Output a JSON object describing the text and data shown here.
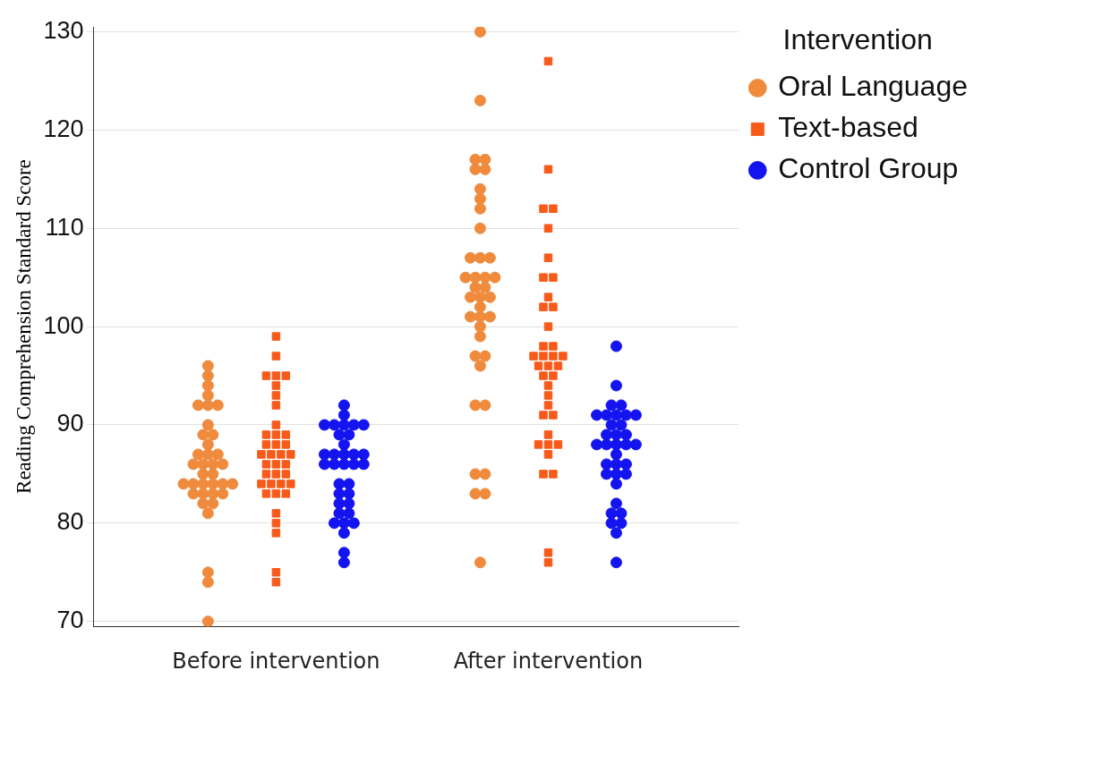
{
  "chart_data": {
    "type": "scatter",
    "ylabel": "Reading Comprehension Standard Score",
    "legend_title": "Intervention",
    "legend": "right",
    "grid": "y",
    "categories": [
      "Before intervention",
      "After intervention"
    ],
    "ylim": [
      69.5,
      130.5
    ],
    "yticks": [
      70,
      80,
      90,
      100,
      110,
      120,
      130
    ],
    "series": [
      {
        "name": "Oral Language",
        "color": "#f08a3c",
        "marker": "circle",
        "x": [
          "Before intervention",
          "Before intervention",
          "Before intervention",
          "Before intervention",
          "Before intervention",
          "Before intervention",
          "Before intervention",
          "Before intervention",
          "Before intervention",
          "Before intervention",
          "Before intervention",
          "Before intervention",
          "Before intervention",
          "Before intervention",
          "Before intervention",
          "Before intervention",
          "Before intervention",
          "Before intervention",
          "Before intervention",
          "Before intervention",
          "Before intervention",
          "Before intervention",
          "Before intervention",
          "Before intervention",
          "Before intervention",
          "Before intervention",
          "Before intervention",
          "Before intervention",
          "Before intervention",
          "Before intervention",
          "Before intervention",
          "Before intervention",
          "Before intervention",
          "Before intervention",
          "Before intervention",
          "Before intervention",
          "After intervention",
          "After intervention",
          "After intervention",
          "After intervention",
          "After intervention",
          "After intervention",
          "After intervention",
          "After intervention",
          "After intervention",
          "After intervention",
          "After intervention",
          "After intervention",
          "After intervention",
          "After intervention",
          "After intervention",
          "After intervention",
          "After intervention",
          "After intervention",
          "After intervention",
          "After intervention",
          "After intervention",
          "After intervention",
          "After intervention",
          "After intervention",
          "After intervention",
          "After intervention",
          "After intervention",
          "After intervention",
          "After intervention",
          "After intervention",
          "After intervention",
          "After intervention",
          "After intervention",
          "After intervention",
          "After intervention",
          "After intervention",
          "After intervention",
          "After intervention"
        ],
        "values": [
          96,
          95,
          94,
          93,
          92,
          92,
          92,
          90,
          89,
          89,
          88,
          87,
          87,
          87,
          86,
          86,
          86,
          86,
          85,
          85,
          84,
          84,
          84,
          84,
          84,
          84,
          83,
          83,
          83,
          83,
          82,
          82,
          81,
          75,
          74,
          70,
          130,
          123,
          117,
          117,
          116,
          116,
          114,
          113,
          112,
          110,
          107,
          107,
          107,
          105,
          105,
          105,
          105,
          104,
          104,
          103,
          103,
          103,
          102,
          101,
          101,
          101,
          100,
          99,
          97,
          97,
          96,
          92,
          92,
          85,
          85,
          83,
          83,
          76
        ]
      },
      {
        "name": "Text-based",
        "color": "#f85a1a",
        "marker": "square",
        "x": [
          "Before intervention",
          "Before intervention",
          "Before intervention",
          "Before intervention",
          "Before intervention",
          "Before intervention",
          "Before intervention",
          "Before intervention",
          "Before intervention",
          "Before intervention",
          "Before intervention",
          "Before intervention",
          "Before intervention",
          "Before intervention",
          "Before intervention",
          "Before intervention",
          "Before intervention",
          "Before intervention",
          "Before intervention",
          "Before intervention",
          "Before intervention",
          "Before intervention",
          "Before intervention",
          "Before intervention",
          "Before intervention",
          "Before intervention",
          "Before intervention",
          "Before intervention",
          "Before intervention",
          "Before intervention",
          "Before intervention",
          "Before intervention",
          "Before intervention",
          "Before intervention",
          "Before intervention",
          "Before intervention",
          "Before intervention",
          "After intervention",
          "After intervention",
          "After intervention",
          "After intervention",
          "After intervention",
          "After intervention",
          "After intervention",
          "After intervention",
          "After intervention",
          "After intervention",
          "After intervention",
          "After intervention",
          "After intervention",
          "After intervention",
          "After intervention",
          "After intervention",
          "After intervention",
          "After intervention",
          "After intervention",
          "After intervention",
          "After intervention",
          "After intervention",
          "After intervention",
          "After intervention",
          "After intervention",
          "After intervention",
          "After intervention",
          "After intervention",
          "After intervention",
          "After intervention",
          "After intervention",
          "After intervention",
          "After intervention",
          "After intervention",
          "After intervention",
          "After intervention",
          "After intervention"
        ],
        "values": [
          99,
          97,
          95,
          95,
          95,
          94,
          93,
          92,
          90,
          89,
          89,
          89,
          88,
          88,
          88,
          87,
          87,
          87,
          87,
          86,
          86,
          86,
          85,
          85,
          85,
          84,
          84,
          84,
          84,
          83,
          83,
          83,
          81,
          80,
          79,
          75,
          74,
          127,
          116,
          112,
          112,
          110,
          107,
          105,
          105,
          103,
          102,
          102,
          100,
          98,
          98,
          97,
          97,
          97,
          97,
          96,
          96,
          96,
          95,
          95,
          94,
          93,
          92,
          91,
          91,
          89,
          88,
          88,
          88,
          87,
          85,
          85,
          77,
          76
        ]
      },
      {
        "name": "Control Group",
        "color": "#1414f0",
        "marker": "circle",
        "x": [
          "Before intervention",
          "Before intervention",
          "Before intervention",
          "Before intervention",
          "Before intervention",
          "Before intervention",
          "Before intervention",
          "Before intervention",
          "Before intervention",
          "Before intervention",
          "Before intervention",
          "Before intervention",
          "Before intervention",
          "Before intervention",
          "Before intervention",
          "Before intervention",
          "Before intervention",
          "Before intervention",
          "Before intervention",
          "Before intervention",
          "Before intervention",
          "Before intervention",
          "Before intervention",
          "Before intervention",
          "Before intervention",
          "Before intervention",
          "Before intervention",
          "Before intervention",
          "Before intervention",
          "Before intervention",
          "Before intervention",
          "Before intervention",
          "Before intervention",
          "Before intervention",
          "After intervention",
          "After intervention",
          "After intervention",
          "After intervention",
          "After intervention",
          "After intervention",
          "After intervention",
          "After intervention",
          "After intervention",
          "After intervention",
          "After intervention",
          "After intervention",
          "After intervention",
          "After intervention",
          "After intervention",
          "After intervention",
          "After intervention",
          "After intervention",
          "After intervention",
          "After intervention",
          "After intervention",
          "After intervention",
          "After intervention",
          "After intervention",
          "After intervention",
          "After intervention",
          "After intervention",
          "After intervention",
          "After intervention",
          "After intervention",
          "After intervention",
          "After intervention",
          "After intervention",
          "After intervention"
        ],
        "values": [
          92,
          91,
          90,
          90,
          90,
          90,
          90,
          89,
          89,
          88,
          87,
          87,
          87,
          87,
          87,
          86,
          86,
          86,
          86,
          86,
          84,
          84,
          83,
          83,
          82,
          82,
          81,
          81,
          80,
          80,
          80,
          79,
          77,
          76,
          98,
          94,
          92,
          92,
          91,
          91,
          91,
          91,
          91,
          90,
          90,
          89,
          89,
          89,
          88,
          88,
          88,
          88,
          88,
          87,
          86,
          86,
          86,
          85,
          85,
          85,
          84,
          82,
          81,
          81,
          80,
          80,
          79,
          76
        ]
      }
    ]
  }
}
